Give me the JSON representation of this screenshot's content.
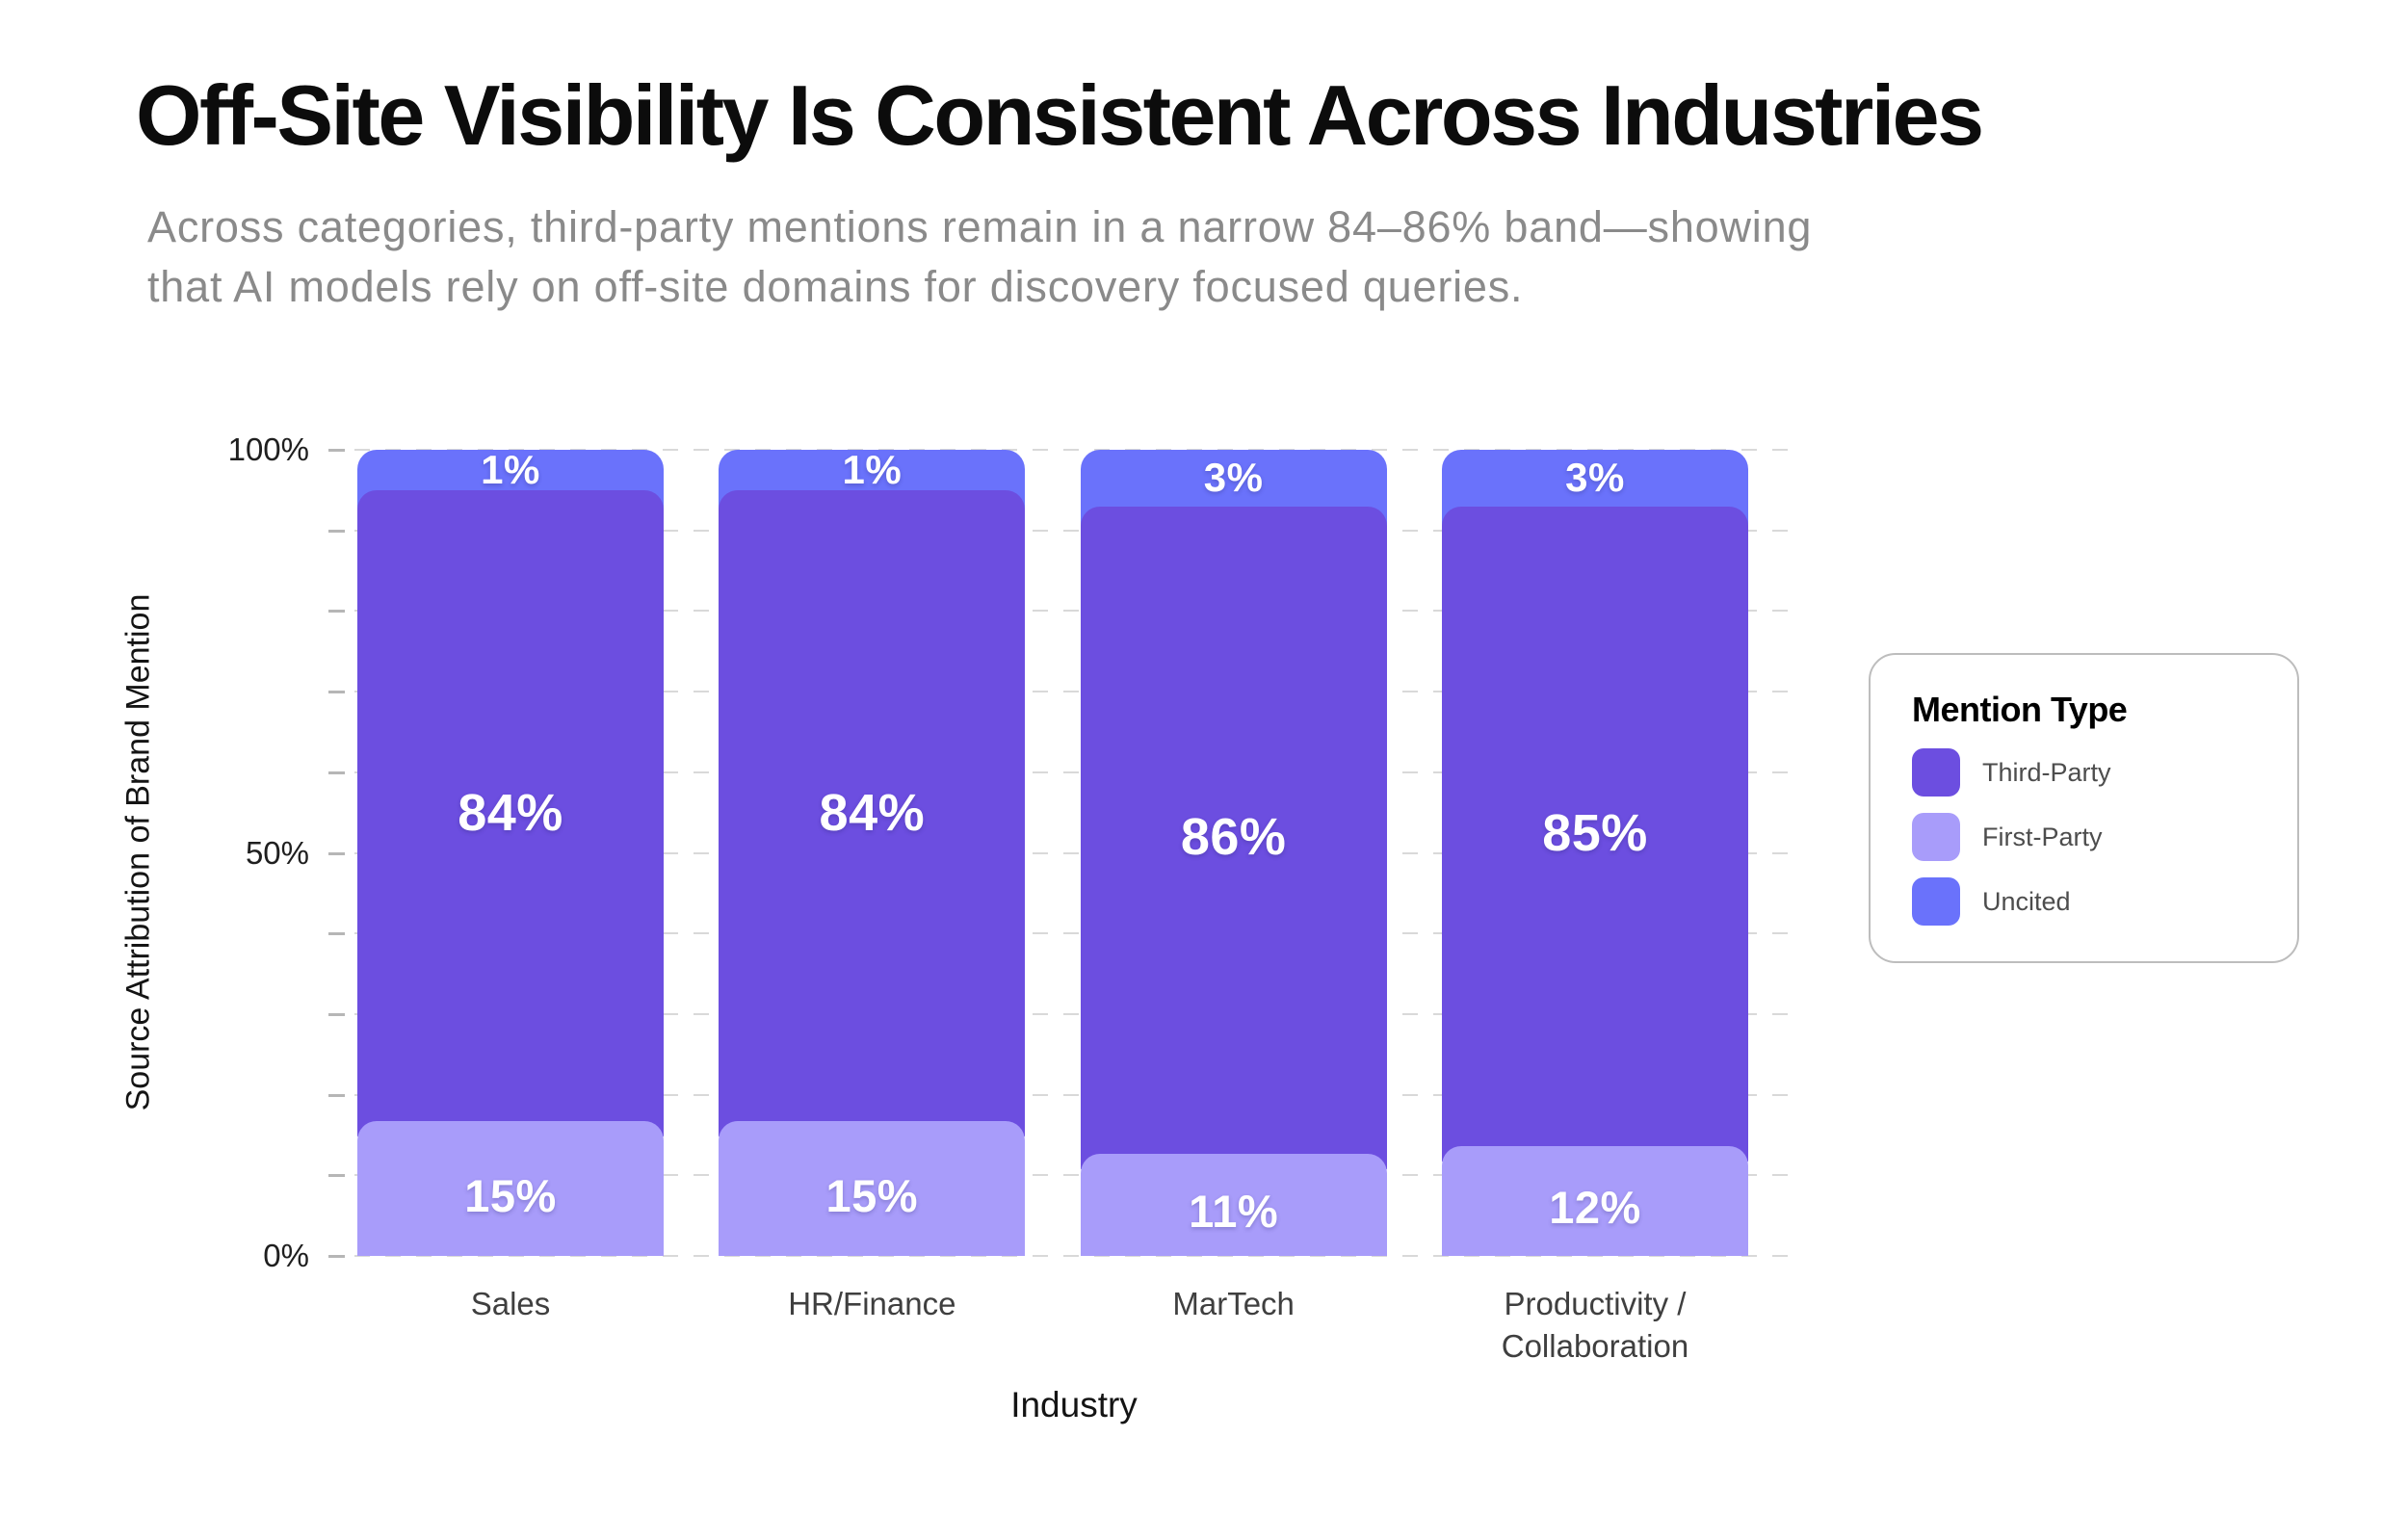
{
  "header": {
    "title": "Off-Site Visibility Is Consistent Across Industries",
    "subtitle": "Across categories, third-party mentions remain in a narrow 84–86% band—showing\nthat AI models rely on off-site domains for discovery focused queries."
  },
  "chart_data": {
    "type": "bar",
    "variant": "100-percent-stacked-vertical",
    "categories": [
      "Sales",
      "HR/Finance",
      "MarTech",
      "Productivity /\nCollaboration"
    ],
    "series": [
      {
        "name": "Third-Party",
        "color": "#6C4EE0",
        "values": [
          84,
          84,
          86,
          85
        ]
      },
      {
        "name": "First-Party",
        "color": "#A89CFA",
        "values": [
          15,
          15,
          11,
          12
        ]
      },
      {
        "name": "Uncited",
        "color": "#6A72FB",
        "values": [
          1,
          1,
          3,
          3
        ]
      }
    ],
    "stack_order_bottom_to_top": [
      "First-Party",
      "Third-Party",
      "Uncited"
    ],
    "data_label_format": "value + %",
    "xlabel": "Industry",
    "ylabel": "Source Attribution of Brand Mention",
    "ylim": [
      0,
      100
    ],
    "ytick_labels": [
      {
        "value": 100,
        "label": "100%"
      },
      {
        "value": 50,
        "label": "50%"
      },
      {
        "value": 0,
        "label": "0%"
      }
    ],
    "minor_tick_step": 10,
    "grid": {
      "horizontal": true,
      "style": "dashed",
      "color": "#d9d9d9"
    },
    "legend": {
      "title": "Mention Type",
      "position": "right"
    }
  },
  "colors": {
    "background": "#ffffff",
    "title_text": "#0c0c0c",
    "subtitle_text": "#8a8a8a",
    "tick_label_text": "#1f1f1f",
    "category_label_text": "#3f3f3f",
    "bar_value_text": "#ffffff",
    "legend_border": "#bdbdbd"
  }
}
